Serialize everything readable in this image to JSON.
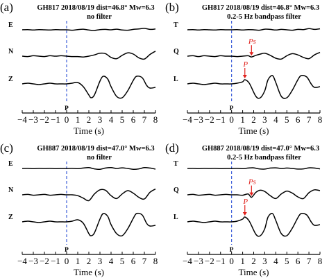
{
  "chart_data": [
    {
      "type": "line",
      "panel_label": "(a)",
      "title": "GH817 2018/08/19 dist=46.8° Mw=6.3",
      "subtitle": "no filter",
      "xlabel": "Time (s)",
      "xlim": [
        -4,
        8
      ],
      "xticks": [
        -4,
        -3,
        -2,
        -1,
        0,
        1,
        2,
        3,
        4,
        5,
        6,
        7,
        8
      ],
      "p_marker": {
        "x": 0,
        "label": "P"
      },
      "series": [
        {
          "name": "E",
          "x": [
            -4,
            -3.5,
            -3,
            -2.5,
            -2,
            -1.5,
            -1,
            -0.5,
            0,
            0.5,
            1,
            1.5,
            2,
            2.5,
            3,
            3.5,
            4,
            4.5,
            5,
            5.5,
            6,
            6.5,
            7,
            7.5,
            8
          ],
          "y": [
            0,
            0.05,
            -0.05,
            0.05,
            0,
            -0.05,
            0.05,
            0,
            0,
            -0.1,
            0.05,
            0.15,
            -0.05,
            -0.15,
            0.05,
            0.1,
            0,
            0.15,
            -0.05,
            -0.1,
            0.1,
            0.2,
            0.35,
            0.1,
            0.2
          ]
        },
        {
          "name": "N",
          "x": [
            -4,
            -3.5,
            -3,
            -2.5,
            -2,
            -1.5,
            -1,
            -0.5,
            0,
            0.5,
            1,
            1.5,
            2,
            2.5,
            3,
            3.5,
            4,
            4.5,
            5,
            5.5,
            6,
            6.5,
            7,
            7.5,
            8
          ],
          "y": [
            0,
            -0.05,
            0.05,
            0,
            -0.05,
            0.05,
            0,
            0.05,
            0,
            -0.05,
            -0.05,
            -0.1,
            0,
            0.15,
            0.35,
            0.3,
            -0.15,
            -0.3,
            0.1,
            0.4,
            0.25,
            -0.2,
            -0.35,
            0.2,
            0.6
          ]
        },
        {
          "name": "Z",
          "x": [
            -4,
            -3.5,
            -3,
            -2.5,
            -2,
            -1.5,
            -1,
            -0.5,
            0,
            0.5,
            1,
            1.5,
            2,
            2.2,
            2.5,
            3,
            3.3,
            3.7,
            4,
            4.5,
            5,
            5.5,
            6,
            6.3,
            6.8,
            7.2,
            7.5,
            8
          ],
          "y": [
            0,
            0.05,
            0,
            -0.05,
            0,
            0.05,
            0,
            0,
            0,
            0.05,
            0.1,
            -0.2,
            -0.8,
            -1,
            -0.8,
            0.2,
            0.55,
            0.35,
            -0.2,
            -0.9,
            -1,
            -0.5,
            0.25,
            0.55,
            0.45,
            -0.1,
            -0.3,
            -0.25
          ]
        }
      ]
    },
    {
      "type": "line",
      "panel_label": "(b)",
      "title": "GH817 2018/08/19 dist=46.8° Mw=6.3",
      "subtitle": "0.2-5 Hz bandpass filter",
      "xlabel": "Time (s)",
      "xlim": [
        -4,
        8
      ],
      "xticks": [
        -4,
        -3,
        -2,
        -1,
        0,
        1,
        2,
        3,
        4,
        5,
        6,
        7,
        8
      ],
      "p_marker": {
        "x": 0,
        "label": "P"
      },
      "annotations": [
        {
          "label": "Ps",
          "x": 1.8,
          "trace": "Q"
        },
        {
          "label": "P",
          "x": 1.2,
          "trace": "L"
        }
      ],
      "series": [
        {
          "name": "T",
          "x": [
            -4,
            -3.5,
            -3,
            -2.5,
            -2,
            -1.5,
            -1,
            -0.5,
            0,
            0.5,
            1,
            1.5,
            2,
            2.5,
            3,
            3.5,
            4,
            4.5,
            5,
            5.5,
            6,
            6.5,
            7,
            7.5,
            8
          ],
          "y": [
            0,
            0.05,
            -0.05,
            0.05,
            0,
            -0.05,
            0.05,
            0,
            0,
            0.05,
            -0.05,
            0.05,
            0,
            -0.1,
            0.15,
            0.1,
            -0.05,
            0.1,
            0,
            -0.1,
            0.1,
            0.05,
            0.3,
            0.1,
            0.25
          ]
        },
        {
          "name": "Q",
          "x": [
            -4,
            -3.5,
            -3,
            -2.5,
            -2,
            -1.5,
            -1,
            -0.5,
            0,
            0.5,
            1,
            1.5,
            1.8,
            2.2,
            2.6,
            3,
            3.5,
            4,
            4.5,
            5,
            5.5,
            6,
            6.5,
            7,
            7.5,
            8
          ],
          "y": [
            0,
            0.05,
            -0.05,
            0.05,
            0,
            -0.05,
            0.05,
            0,
            0,
            -0.05,
            0,
            0.05,
            -0.1,
            0.1,
            0.25,
            0.35,
            0.1,
            -0.25,
            -0.35,
            0.05,
            0.3,
            0.15,
            -0.15,
            -0.3,
            0.15,
            0.45
          ]
        },
        {
          "name": "L",
          "x": [
            -4,
            -3.5,
            -3,
            -2.5,
            -2,
            -1.5,
            -1,
            -0.5,
            0,
            0.5,
            1,
            1.2,
            1.6,
            2.2,
            2.6,
            3,
            3.3,
            3.7,
            4,
            4.5,
            5,
            5.5,
            6,
            6.3,
            6.8,
            7.2,
            7.5,
            8
          ],
          "y": [
            0,
            0.05,
            0,
            -0.05,
            0,
            0.05,
            0,
            0,
            0,
            0.05,
            0.15,
            0.3,
            0.05,
            -0.9,
            -1,
            -0.5,
            0.3,
            0.6,
            0.1,
            -0.9,
            -1,
            -0.45,
            0.3,
            0.6,
            0.5,
            0,
            -0.25,
            -0.2
          ]
        }
      ]
    },
    {
      "type": "line",
      "panel_label": "(c)",
      "title": "GH887 2018/08/19 dist=47.0° Mw=6.3",
      "subtitle": "no filter",
      "xlabel": "Time (s)",
      "xlim": [
        -4,
        8
      ],
      "xticks": [
        -4,
        -3,
        -2,
        -1,
        0,
        1,
        2,
        3,
        4,
        5,
        6,
        7,
        8
      ],
      "p_marker": {
        "x": 0,
        "label": "P"
      },
      "series": [
        {
          "name": "E",
          "x": [
            -4,
            -3.5,
            -3,
            -2.5,
            -2,
            -1.5,
            -1,
            -0.5,
            0,
            0.5,
            1,
            1.5,
            2,
            2.5,
            3,
            3.5,
            4,
            4.5,
            5,
            5.5,
            6,
            6.5,
            7,
            7.5,
            8
          ],
          "y": [
            0,
            0.05,
            -0.05,
            0.05,
            0,
            0.05,
            -0.05,
            0,
            0,
            0.05,
            -0.05,
            0.1,
            0.2,
            -0.1,
            -0.2,
            0.1,
            0.2,
            0,
            0.15,
            0,
            -0.2,
            -0.1,
            0.2,
            0.1,
            -0.15
          ]
        },
        {
          "name": "N",
          "x": [
            -4,
            -3.5,
            -3,
            -2.5,
            -2,
            -1.5,
            -1,
            -0.5,
            0,
            0.5,
            1,
            1.5,
            2,
            2.5,
            3,
            3.5,
            4,
            4.5,
            5,
            5.5,
            6,
            6.5,
            7,
            7.5,
            8
          ],
          "y": [
            0,
            0.05,
            -0.05,
            0,
            0.05,
            -0.05,
            0,
            0.05,
            0,
            0,
            -0.1,
            -0.4,
            -0.7,
            0.1,
            0.6,
            0.55,
            -0.1,
            -0.45,
            0.1,
            0.5,
            0.2,
            -0.3,
            -0.5,
            0.3,
            0.7
          ]
        },
        {
          "name": "Z",
          "x": [
            -4,
            -3.5,
            -3,
            -2.5,
            -2,
            -1.5,
            -1,
            -0.5,
            0,
            0.5,
            1,
            1.5,
            2,
            2.2,
            2.5,
            3,
            3.3,
            3.7,
            4,
            4.5,
            5,
            5.5,
            6,
            6.3,
            6.8,
            7.2,
            7.5,
            8
          ],
          "y": [
            0,
            0.05,
            0,
            -0.05,
            0,
            0.05,
            0,
            0,
            0,
            0.05,
            0.15,
            -0.1,
            -0.85,
            -1,
            -0.8,
            0.2,
            0.6,
            0.4,
            -0.2,
            -0.85,
            -1,
            -0.5,
            0.25,
            0.6,
            0.5,
            -0.1,
            -0.3,
            -0.25
          ]
        }
      ]
    },
    {
      "type": "line",
      "panel_label": "(d)",
      "title": "GH887 2018/08/19 dist=47.0° Mw=6.3",
      "subtitle": "0.2-5 Hz bandpass filter",
      "xlabel": "Time (s)",
      "xlim": [
        -4,
        8
      ],
      "xticks": [
        -4,
        -3,
        -2,
        -1,
        0,
        1,
        2,
        3,
        4,
        5,
        6,
        7,
        8
      ],
      "p_marker": {
        "x": 0,
        "label": "P"
      },
      "annotations": [
        {
          "label": "Ps",
          "x": 1.8,
          "trace": "Q"
        },
        {
          "label": "P",
          "x": 1.2,
          "trace": "L"
        }
      ],
      "series": [
        {
          "name": "T",
          "x": [
            -4,
            -3.5,
            -3,
            -2.5,
            -2,
            -1.5,
            -1,
            -0.5,
            0,
            0.5,
            1,
            1.5,
            2,
            2.5,
            3,
            3.5,
            4,
            4.5,
            5,
            5.5,
            6,
            6.5,
            7,
            7.5,
            8
          ],
          "y": [
            0,
            0.05,
            -0.05,
            0.05,
            0,
            0.05,
            -0.05,
            0,
            0,
            0.05,
            -0.05,
            0.1,
            0.15,
            -0.1,
            -0.15,
            0.1,
            0.15,
            0,
            0.1,
            0,
            -0.15,
            -0.1,
            0.15,
            0.1,
            -0.1
          ]
        },
        {
          "name": "Q",
          "x": [
            -4,
            -3.5,
            -3,
            -2.5,
            -2,
            -1.5,
            -1,
            -0.5,
            0,
            0.5,
            1,
            1.5,
            1.8,
            2.2,
            2.6,
            3,
            3.5,
            4,
            4.5,
            5,
            5.5,
            6,
            6.5,
            7,
            7.5,
            8
          ],
          "y": [
            0,
            0.05,
            -0.05,
            0,
            0.05,
            -0.05,
            0,
            0.05,
            0,
            0,
            -0.05,
            0.1,
            -0.3,
            0.3,
            0.55,
            0.4,
            -0.1,
            -0.45,
            0.1,
            0.45,
            0.2,
            -0.25,
            -0.45,
            0.25,
            0.6,
            0.5
          ]
        },
        {
          "name": "L",
          "x": [
            -4,
            -3.5,
            -3,
            -2.5,
            -2,
            -1.5,
            -1,
            -0.5,
            0,
            0.5,
            1,
            1.2,
            1.6,
            2.2,
            2.6,
            3,
            3.3,
            3.7,
            4,
            4.5,
            5,
            5.5,
            6,
            6.3,
            6.8,
            7.2,
            7.5,
            8
          ],
          "y": [
            0,
            0.05,
            0,
            -0.05,
            0,
            0.05,
            0,
            0,
            0,
            0.05,
            0.2,
            0.35,
            0.05,
            -0.9,
            -1,
            -0.5,
            0.35,
            0.6,
            0.1,
            -0.85,
            -1,
            -0.45,
            0.3,
            0.6,
            0.5,
            0,
            -0.25,
            -0.2
          ]
        }
      ]
    }
  ]
}
